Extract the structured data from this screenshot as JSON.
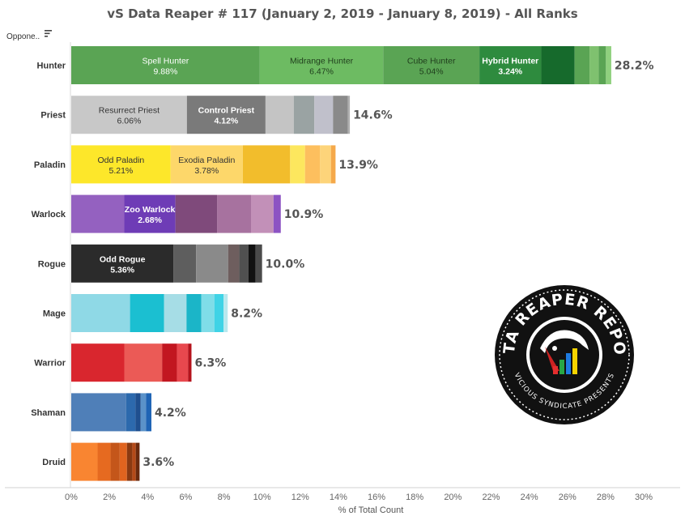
{
  "chart_data": {
    "type": "bar",
    "orientation": "horizontal",
    "stacked": true,
    "title": "vS Data Reaper # 117 (January 2, 2019 - January 8, 2019) - All Ranks",
    "row_header": "Oppone..",
    "xlabel": "% of Total Count",
    "xlim": [
      0,
      30
    ],
    "x_ticks": [
      "0%",
      "2%",
      "4%",
      "6%",
      "8%",
      "10%",
      "12%",
      "14%",
      "16%",
      "18%",
      "20%",
      "22%",
      "24%",
      "26%",
      "28%",
      "30%"
    ],
    "grid": false,
    "logo": {
      "name": "Data Reaper Report logo",
      "text_top": "DATA REAPER REPORT",
      "text_bottom": "VICIOUS SYNDICATE PRESENTS"
    },
    "categories": [
      "Hunter",
      "Priest",
      "Paladin",
      "Warlock",
      "Rogue",
      "Mage",
      "Warrior",
      "Shaman",
      "Druid"
    ],
    "rows": [
      {
        "name": "Hunter",
        "total_label": "28.2%",
        "segments": [
          {
            "label": "Spell Hunter",
            "value_label": "9.88%",
            "value": 9.88,
            "color": "#5aa454",
            "text_color": "#ffffff"
          },
          {
            "label": "Midrange Hunter",
            "value_label": "6.47%",
            "value": 6.47,
            "color": "#6dbb62",
            "text_color": "#1f3d1c"
          },
          {
            "label": "Cube Hunter",
            "value_label": "5.04%",
            "value": 5.04,
            "color": "#5aa454",
            "text_color": "#1f3d1c"
          },
          {
            "label": "Hybrid Hunter",
            "value_label": "3.24%",
            "value": 3.24,
            "color": "#2e8b3e",
            "text_color": "#ffffff",
            "bold": true
          },
          {
            "value": 1.75,
            "color": "#166a2c"
          },
          {
            "value": 0.78,
            "color": "#5aa454"
          },
          {
            "value": 0.48,
            "color": "#7fc16f"
          },
          {
            "value": 0.38,
            "color": "#5aa454"
          },
          {
            "value": 0.28,
            "color": "#8fd07e"
          }
        ]
      },
      {
        "name": "Priest",
        "total_label": "14.6%",
        "segments": [
          {
            "label": "Resurrect Priest",
            "value_label": "6.06%",
            "value": 6.06,
            "color": "#c8c8c8",
            "text_color": "#333333"
          },
          {
            "label": "Control Priest",
            "value_label": "4.12%",
            "value": 4.12,
            "color": "#7a7a7a",
            "text_color": "#ffffff",
            "bold": true
          },
          {
            "value": 1.48,
            "color": "#c4c4c4"
          },
          {
            "value": 1.08,
            "color": "#9aa3a3"
          },
          {
            "value": 0.98,
            "color": "#c0c0cb"
          },
          {
            "value": 0.78,
            "color": "#8a8a8a"
          },
          {
            "value": 0.1,
            "color": "#b0b0b0"
          }
        ]
      },
      {
        "name": "Paladin",
        "total_label": "13.9%",
        "segments": [
          {
            "label": "Odd Paladin",
            "value_label": "5.21%",
            "value": 5.21,
            "color": "#fde72a",
            "text_color": "#333333"
          },
          {
            "label": "Exodia Paladin",
            "value_label": "3.78%",
            "value": 3.78,
            "color": "#fdd76a",
            "text_color": "#333333"
          },
          {
            "value": 2.48,
            "color": "#f2bd2c"
          },
          {
            "value": 0.78,
            "color": "#fde75e"
          },
          {
            "value": 0.78,
            "color": "#fdbf5e"
          },
          {
            "value": 0.58,
            "color": "#fdd47a"
          },
          {
            "value": 0.24,
            "color": "#f5a94a"
          }
        ]
      },
      {
        "name": "Warlock",
        "total_label": "10.9%",
        "segments": [
          {
            "value": 2.78,
            "color": "#9461c0"
          },
          {
            "label": "Zoo Warlock",
            "value_label": "2.68%",
            "value": 2.68,
            "color": "#6e3cb6",
            "text_color": "#ffffff",
            "bold": true
          },
          {
            "value": 2.18,
            "color": "#7f4a7b"
          },
          {
            "value": 1.78,
            "color": "#a7729f"
          },
          {
            "value": 1.18,
            "color": "#c290b8"
          },
          {
            "value": 0.38,
            "color": "#8c53c3"
          }
        ]
      },
      {
        "name": "Rogue",
        "total_label": "10.0%",
        "segments": [
          {
            "label": "Odd Rogue",
            "value_label": "5.36%",
            "value": 5.36,
            "color": "#2b2b2b",
            "text_color": "#ffffff",
            "bold": true
          },
          {
            "value": 1.18,
            "color": "#5e5e5e"
          },
          {
            "value": 1.68,
            "color": "#8a8a8a"
          },
          {
            "value": 0.58,
            "color": "#6e5e5e"
          },
          {
            "value": 0.48,
            "color": "#505050"
          },
          {
            "value": 0.38,
            "color": "#111111"
          },
          {
            "value": 0.34,
            "color": "#4a4a4a"
          }
        ]
      },
      {
        "name": "Mage",
        "total_label": "8.2%",
        "segments": [
          {
            "value": 3.08,
            "color": "#8fd9e6"
          },
          {
            "value": 1.78,
            "color": "#1bbfd1"
          },
          {
            "value": 1.18,
            "color": "#a6dde6"
          },
          {
            "value": 0.78,
            "color": "#1bb5c8"
          },
          {
            "value": 0.68,
            "color": "#7fdde8"
          },
          {
            "value": 0.48,
            "color": "#3fd3e6"
          },
          {
            "value": 0.22,
            "color": "#b8e8ee"
          }
        ]
      },
      {
        "name": "Warrior",
        "total_label": "6.3%",
        "segments": [
          {
            "value": 2.78,
            "color": "#d9262e"
          },
          {
            "value": 1.98,
            "color": "#eb5a56"
          },
          {
            "value": 0.78,
            "color": "#c21620"
          },
          {
            "value": 0.58,
            "color": "#e8484e"
          },
          {
            "value": 0.18,
            "color": "#b5131c"
          }
        ]
      },
      {
        "name": "Shaman",
        "total_label": "4.2%",
        "segments": [
          {
            "value": 2.88,
            "color": "#4f7fb8"
          },
          {
            "value": 0.48,
            "color": "#2c69ad"
          },
          {
            "value": 0.28,
            "color": "#1f4f8f"
          },
          {
            "value": 0.28,
            "color": "#5b92c9"
          },
          {
            "value": 0.28,
            "color": "#1f64b5"
          }
        ]
      },
      {
        "name": "Druid",
        "total_label": "3.6%",
        "segments": [
          {
            "value": 1.38,
            "color": "#f98531"
          },
          {
            "value": 0.68,
            "color": "#e66a20"
          },
          {
            "value": 0.48,
            "color": "#c4561a"
          },
          {
            "value": 0.38,
            "color": "#e0641f"
          },
          {
            "value": 0.28,
            "color": "#8a3a12"
          },
          {
            "value": 0.18,
            "color": "#b54a18"
          },
          {
            "value": 0.2,
            "color": "#6a2a0e"
          }
        ]
      }
    ]
  }
}
